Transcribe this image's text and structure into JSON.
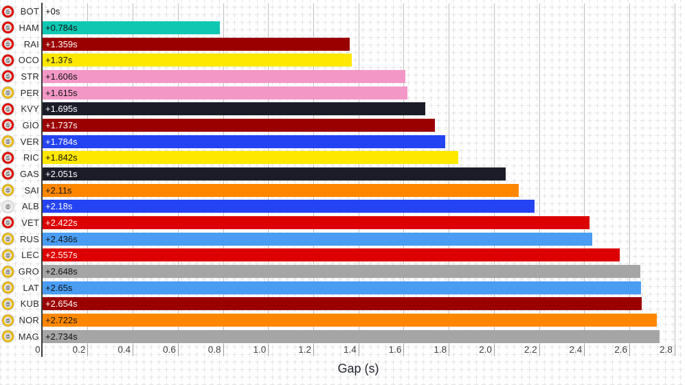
{
  "chart_data": {
    "type": "bar",
    "orientation": "horizontal",
    "title": "",
    "xlabel": "Gap (s)",
    "ylabel": "",
    "xlim": [
      0,
      2.8
    ],
    "grid": true,
    "legend": "none",
    "xticks": [
      {
        "value": 0.0,
        "label": "0"
      },
      {
        "value": 0.2,
        "label": "0.2"
      },
      {
        "value": 0.4,
        "label": "0.4"
      },
      {
        "value": 0.6,
        "label": "0.6"
      },
      {
        "value": 0.8,
        "label": "0.8"
      },
      {
        "value": 1.0,
        "label": "1.0"
      },
      {
        "value": 1.2,
        "label": "1.2"
      },
      {
        "value": 1.4,
        "label": "1.4"
      },
      {
        "value": 1.6,
        "label": "1.6"
      },
      {
        "value": 1.8,
        "label": "1.8"
      },
      {
        "value": 2.0,
        "label": "2.0"
      },
      {
        "value": 2.2,
        "label": "2.2"
      },
      {
        "value": 2.4,
        "label": "2.4"
      },
      {
        "value": 2.6,
        "label": "2.6"
      },
      {
        "value": 2.8,
        "label": "2.8"
      }
    ],
    "tyre_ring_colors": {
      "C5": "#e10600",
      "C4": "#e10600",
      "C3": "#e9b90e",
      "C2": "#ececec"
    },
    "tyre_icon_inner_color": "#8d8d8d",
    "rows": [
      {
        "code": "BOT",
        "tyre": "C5",
        "gap": "+0s",
        "value": 0,
        "bar_color": null,
        "value_color": "#111111"
      },
      {
        "code": "HAM",
        "tyre": "C5",
        "gap": "+0.784s",
        "value": 0.784,
        "bar_color": "#10c8b2",
        "value_color": "#111111"
      },
      {
        "code": "RAI",
        "tyre": "C5",
        "gap": "+1.359s",
        "value": 1.359,
        "bar_color": "#9b0000",
        "value_color": "#ffffff"
      },
      {
        "code": "OCO",
        "tyre": "C4",
        "gap": "+1.37s",
        "value": 1.37,
        "bar_color": "#ffe800",
        "value_color": "#111111"
      },
      {
        "code": "STR",
        "tyre": "C4",
        "gap": "+1.606s",
        "value": 1.606,
        "bar_color": "#f398c6",
        "value_color": "#111111"
      },
      {
        "code": "PER",
        "tyre": "C3",
        "gap": "+1.615s",
        "value": 1.615,
        "bar_color": "#f398c6",
        "value_color": "#111111"
      },
      {
        "code": "KVY",
        "tyre": "C4",
        "gap": "+1.695s",
        "value": 1.695,
        "bar_color": "#1c1c29",
        "value_color": "#ffffff"
      },
      {
        "code": "GIO",
        "tyre": "C5",
        "gap": "+1.737s",
        "value": 1.737,
        "bar_color": "#9b0000",
        "value_color": "#ffffff"
      },
      {
        "code": "VER",
        "tyre": "C3",
        "gap": "+1.784s",
        "value": 1.784,
        "bar_color": "#2443f2",
        "value_color": "#ffffff"
      },
      {
        "code": "RIC",
        "tyre": "C4",
        "gap": "+1.842s",
        "value": 1.842,
        "bar_color": "#ffe800",
        "value_color": "#111111"
      },
      {
        "code": "GAS",
        "tyre": "C4",
        "gap": "+2.051s",
        "value": 2.051,
        "bar_color": "#1c1c29",
        "value_color": "#ffffff"
      },
      {
        "code": "SAI",
        "tyre": "C3",
        "gap": "+2.11s",
        "value": 2.11,
        "bar_color": "#ff8700",
        "value_color": "#111111"
      },
      {
        "code": "ALB",
        "tyre": "C2",
        "gap": "+2.18s",
        "value": 2.18,
        "bar_color": "#2443f2",
        "value_color": "#ffffff"
      },
      {
        "code": "VET",
        "tyre": "C5",
        "gap": "+2.422s",
        "value": 2.422,
        "bar_color": "#dc0000",
        "value_color": "#ffffff"
      },
      {
        "code": "RUS",
        "tyre": "C3",
        "gap": "+2.436s",
        "value": 2.436,
        "bar_color": "#4a9df2",
        "value_color": "#111111"
      },
      {
        "code": "LEC",
        "tyre": "C3",
        "gap": "+2.557s",
        "value": 2.557,
        "bar_color": "#dc0000",
        "value_color": "#ffffff"
      },
      {
        "code": "GRO",
        "tyre": "C3",
        "gap": "+2.648s",
        "value": 2.648,
        "bar_color": "#a5a5a5",
        "value_color": "#111111"
      },
      {
        "code": "LAT",
        "tyre": "C3",
        "gap": "+2.65s",
        "value": 2.65,
        "bar_color": "#4a9df2",
        "value_color": "#111111"
      },
      {
        "code": "KUB",
        "tyre": "C3",
        "gap": "+2.654s",
        "value": 2.654,
        "bar_color": "#9b0000",
        "value_color": "#ffffff"
      },
      {
        "code": "NOR",
        "tyre": "C3",
        "gap": "+2.722s",
        "value": 2.722,
        "bar_color": "#ff8700",
        "value_color": "#111111"
      },
      {
        "code": "MAG",
        "tyre": "C3",
        "gap": "+2.734s",
        "value": 2.734,
        "bar_color": "#a5a5a5",
        "value_color": "#111111"
      }
    ]
  }
}
